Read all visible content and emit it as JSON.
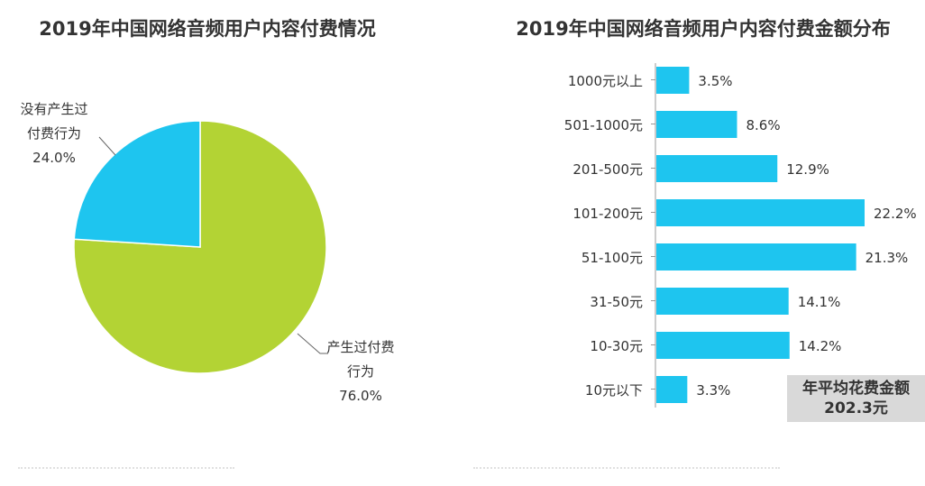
{
  "chart_data": [
    {
      "type": "pie",
      "title": "2019年中国网络音频用户内容付费情况",
      "slices": [
        {
          "label_lines": [
            "产生过付费",
            "行为"
          ],
          "value": 76.0,
          "value_label": "76.0%",
          "color": "#b3d334"
        },
        {
          "label_lines": [
            "没有产生过",
            "付费行为"
          ],
          "value": 24.0,
          "value_label": "24.0%",
          "color": "#1ec5ef"
        }
      ]
    },
    {
      "type": "bar",
      "orientation": "horizontal",
      "title": "2019年中国网络音频用户内容付费金额分布",
      "categories": [
        "1000元以上",
        "501-1000元",
        "201-500元",
        "101-200元",
        "51-100元",
        "31-50元",
        "10-30元",
        "10元以下"
      ],
      "values": [
        3.5,
        8.6,
        12.9,
        22.2,
        21.3,
        14.1,
        14.2,
        3.3
      ],
      "value_labels": [
        "3.5%",
        "8.6%",
        "12.9%",
        "22.2%",
        "21.3%",
        "14.1%",
        "14.2%",
        "3.3%"
      ],
      "color": "#1ec5ef",
      "xlim": [
        0,
        25
      ]
    }
  ],
  "avg_box": {
    "line1": "年平均花费金额",
    "line2": "202.3元"
  }
}
